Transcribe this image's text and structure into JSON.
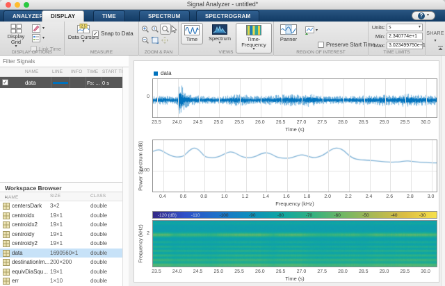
{
  "window": {
    "title": "Signal Analyzer - untitled*"
  },
  "ribbon_tabs": {
    "items": [
      "ANALYZER",
      "DISPLAY",
      "TIME",
      "SPECTRUM",
      "SPECTROGRAM"
    ],
    "selected": "DISPLAY",
    "help_icon": "?"
  },
  "toolstrip": {
    "display_options": {
      "label": "DISPLAY OPTIONS",
      "display_grid_label": "Display Grid",
      "link_time_label": "Link Time"
    },
    "measure": {
      "label": "MEASURE",
      "data_cursors_label": "Data Cursors",
      "snap_to_data_label": "Snap to Data",
      "cursor_icon_text": "2.5"
    },
    "zoom_pan": {
      "label": "ZOOM & PAN"
    },
    "views": {
      "label": "VIEWS",
      "time_label": "Time",
      "spectrum_label": "Spectrum",
      "time_frequency_label": "Time-Frequency"
    },
    "region_of_interest": {
      "label": "REGION OF INTEREST",
      "panner_label": "Panner",
      "preserve_start_time_label": "Preserve Start Time"
    },
    "time_limits": {
      "label": "TIME LIMITS",
      "units_label": "Units:",
      "units_value": "s",
      "min_label": "Min:",
      "min_value": "2.340774e+1",
      "max_label": "Max:",
      "max_value": "3.023499750e+1"
    },
    "share_label": "SHARE"
  },
  "sidebar": {
    "filter_label": "Filter Signals",
    "signal_table": {
      "headers": [
        "NAME",
        "LINE",
        "INFO",
        "TIME",
        "START TIME"
      ],
      "rows": [
        {
          "checked": true,
          "name": "data",
          "line_color": "#0072BD",
          "info": "",
          "time": "Fs: ...",
          "start_time": "0 s",
          "selected": true
        }
      ]
    },
    "workspace": {
      "title": "Workspace Browser",
      "headers": [
        "NAME",
        "SIZE",
        "CLASS"
      ],
      "sort_icon": "▴",
      "rows": [
        {
          "name": "centersDark",
          "size": "3×2",
          "class": "double",
          "selected": false
        },
        {
          "name": "centroidx",
          "size": "19×1",
          "class": "double",
          "selected": false
        },
        {
          "name": "centroidx2",
          "size": "19×1",
          "class": "double",
          "selected": false
        },
        {
          "name": "centroidy",
          "size": "19×1",
          "class": "double",
          "selected": false
        },
        {
          "name": "centroidy2",
          "size": "19×1",
          "class": "double",
          "selected": false
        },
        {
          "name": "data",
          "size": "1690560×1",
          "class": "double",
          "selected": true
        },
        {
          "name": "destinationIm...",
          "size": "200×200",
          "class": "double",
          "selected": false
        },
        {
          "name": "equivDiaSqu...",
          "size": "19×1",
          "class": "double",
          "selected": false
        },
        {
          "name": "err",
          "size": "1×10",
          "class": "double",
          "selected": false
        }
      ]
    }
  },
  "chart_data": [
    {
      "type": "line",
      "id": "time-waveform",
      "legend": [
        "data"
      ],
      "xlabel": "Time (s)",
      "xlim": [
        23.4,
        30.25
      ],
      "xticks": [
        "23.5",
        "24.0",
        "24.5",
        "25.0",
        "25.5",
        "26.0",
        "26.5",
        "27.0",
        "27.5",
        "28.0",
        "28.5",
        "29.0",
        "29.5",
        "30.0"
      ],
      "ytick": "0",
      "line_color": "#0072BD",
      "description": "Broadband noisy waveform; sharp transient burst at t≈24.05 s; amplitude swells near 25.5, 26.7, 27.2 and 28.9–29.7 s",
      "amplitude_envelope": [
        [
          23.4,
          0.22
        ],
        [
          23.7,
          0.26
        ],
        [
          23.95,
          0.2
        ],
        [
          24.0,
          0.35
        ],
        [
          24.03,
          1.0
        ],
        [
          24.08,
          0.85
        ],
        [
          24.15,
          0.5
        ],
        [
          24.3,
          0.3
        ],
        [
          24.6,
          0.24
        ],
        [
          25.0,
          0.2
        ],
        [
          25.3,
          0.3
        ],
        [
          25.55,
          0.34
        ],
        [
          25.8,
          0.24
        ],
        [
          26.1,
          0.26
        ],
        [
          26.45,
          0.3
        ],
        [
          26.7,
          0.36
        ],
        [
          26.95,
          0.28
        ],
        [
          27.15,
          0.38
        ],
        [
          27.4,
          0.26
        ],
        [
          27.7,
          0.22
        ],
        [
          28.0,
          0.24
        ],
        [
          28.3,
          0.26
        ],
        [
          28.6,
          0.28
        ],
        [
          28.9,
          0.34
        ],
        [
          29.15,
          0.28
        ],
        [
          29.45,
          0.38
        ],
        [
          29.7,
          0.34
        ],
        [
          29.95,
          0.3
        ],
        [
          30.25,
          0.28
        ]
      ]
    },
    {
      "type": "line",
      "id": "power-spectrum",
      "ylabel": "Power Spectrum (dB)",
      "xlabel": "Frequency (kHz)",
      "xlim": [
        0.3,
        3.05
      ],
      "ylim": [
        -40,
        -140
      ],
      "ytick": "-100",
      "xticks": [
        "0.4",
        "0.6",
        "0.8",
        "1.0",
        "1.2",
        "1.4",
        "1.6",
        "1.8",
        "2.0",
        "2.2",
        "2.4",
        "2.6",
        "2.8",
        "3.0"
      ],
      "line_color": "#7fb2d6",
      "points": [
        [
          0.3,
          -62
        ],
        [
          0.35,
          -57
        ],
        [
          0.4,
          -62
        ],
        [
          0.45,
          -68
        ],
        [
          0.5,
          -72
        ],
        [
          0.55,
          -73
        ],
        [
          0.6,
          -71
        ],
        [
          0.65,
          -60
        ],
        [
          0.7,
          -54
        ],
        [
          0.75,
          -59
        ],
        [
          0.8,
          -72
        ],
        [
          0.85,
          -74
        ],
        [
          0.9,
          -74
        ],
        [
          0.95,
          -71
        ],
        [
          1.0,
          -66
        ],
        [
          1.05,
          -62
        ],
        [
          1.1,
          -65
        ],
        [
          1.15,
          -71
        ],
        [
          1.2,
          -74
        ],
        [
          1.25,
          -74
        ],
        [
          1.3,
          -71
        ],
        [
          1.35,
          -66
        ],
        [
          1.4,
          -64
        ],
        [
          1.45,
          -67
        ],
        [
          1.5,
          -73
        ],
        [
          1.55,
          -75
        ],
        [
          1.6,
          -75
        ],
        [
          1.65,
          -74
        ],
        [
          1.7,
          -70
        ],
        [
          1.75,
          -68
        ],
        [
          1.8,
          -71
        ],
        [
          1.85,
          -74
        ],
        [
          1.9,
          -73
        ],
        [
          1.95,
          -69
        ],
        [
          2.0,
          -62
        ],
        [
          2.05,
          -56
        ],
        [
          2.1,
          -55
        ],
        [
          2.15,
          -60
        ],
        [
          2.2,
          -70
        ],
        [
          2.25,
          -76
        ],
        [
          2.3,
          -78
        ],
        [
          2.4,
          -79
        ],
        [
          2.5,
          -81
        ],
        [
          2.6,
          -83
        ],
        [
          2.7,
          -82
        ],
        [
          2.75,
          -80
        ],
        [
          2.8,
          -81
        ],
        [
          2.9,
          -83
        ],
        [
          3.0,
          -84
        ],
        [
          3.05,
          -84
        ]
      ]
    },
    {
      "type": "spectrogram",
      "id": "spectrogram",
      "ylabel": "Frequency (kHz)",
      "xlabel": "Time (s)",
      "ytick": "2",
      "xlim": [
        23.4,
        30.25
      ],
      "xticks": [
        "23.5",
        "24.0",
        "24.5",
        "25.0",
        "25.5",
        "26.0",
        "26.5",
        "27.0",
        "27.5",
        "28.0",
        "28.5",
        "29.0",
        "29.5",
        "30.0"
      ],
      "colorbar_labels": [
        "-120 (dB)",
        "-110",
        "-100",
        "-90",
        "-80",
        "-70",
        "-60",
        "-50",
        "-40",
        "-30"
      ],
      "colormap": [
        "#352a87",
        "#3050c8",
        "#1e70c9",
        "#0e8dbe",
        "#0fa5a4",
        "#30b183",
        "#6fb765",
        "#abb854",
        "#dcbe45",
        "#f7e14b"
      ],
      "db_range": [
        -125,
        -25
      ],
      "base_db": -84,
      "bands": [
        [
          0.05,
          0.03,
          5,
          0.5
        ],
        [
          0.3,
          0.045,
          23,
          0.55
        ],
        [
          0.46,
          0.03,
          9,
          0.6
        ],
        [
          0.56,
          0.028,
          11,
          0.6
        ],
        [
          0.65,
          0.03,
          13,
          0.5
        ],
        [
          0.75,
          0.033,
          15,
          0.45
        ],
        [
          0.85,
          0.038,
          18,
          0.35
        ],
        [
          0.96,
          0.05,
          22,
          0.3
        ]
      ],
      "time_envelope": [
        [
          23.4,
          0.95
        ],
        [
          23.75,
          0.9
        ],
        [
          23.9,
          0.35
        ],
        [
          24.1,
          0.55
        ],
        [
          24.5,
          0.6
        ],
        [
          24.8,
          0.35
        ],
        [
          25.1,
          0.75
        ],
        [
          25.5,
          0.95
        ],
        [
          26.0,
          0.9
        ],
        [
          26.3,
          0.45
        ],
        [
          26.5,
          0.8
        ],
        [
          26.9,
          0.9
        ],
        [
          27.2,
          0.55
        ],
        [
          27.45,
          0.35
        ],
        [
          27.8,
          0.5
        ],
        [
          28.2,
          0.65
        ],
        [
          28.5,
          0.4
        ],
        [
          28.8,
          0.8
        ],
        [
          29.1,
          0.7
        ],
        [
          29.4,
          0.85
        ],
        [
          29.8,
          0.9
        ],
        [
          30.1,
          0.75
        ],
        [
          30.25,
          0.65
        ]
      ]
    }
  ]
}
